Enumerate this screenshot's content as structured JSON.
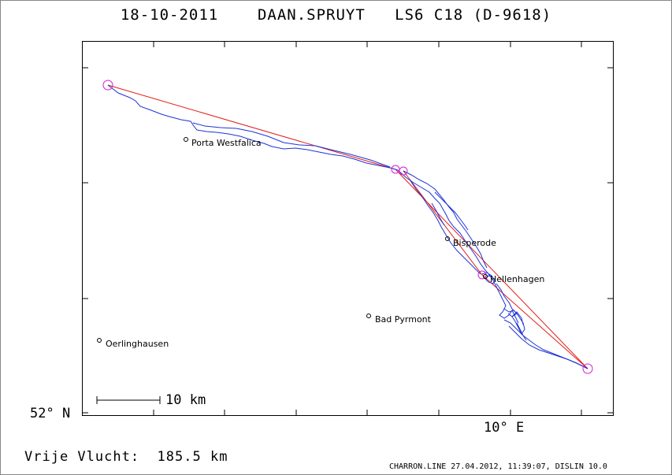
{
  "header": {
    "date": "18-10-2011",
    "pilot": "DAAN.SPRUYT",
    "glider": "LS6 C18 (D-9618)"
  },
  "axes": {
    "lat_label": "52° N",
    "lon_label": "10° E"
  },
  "scale_bar": {
    "label": "10 km"
  },
  "towns": [
    {
      "name": "Porta Westfalica"
    },
    {
      "name": "Bisperode"
    },
    {
      "name": "Hellenhagen"
    },
    {
      "name": "Bad Pyrmont"
    },
    {
      "name": "Oerlinghausen"
    }
  ],
  "footer": {
    "distance_label": "Vrije Vlucht:",
    "distance_value": "185.5 km",
    "software": "CHARRON.LINE 27.04.2012, 11:39:07, DISLIN 10.0"
  },
  "colors": {
    "track": "#1f33d6",
    "task": "#e0201a",
    "turnpoint": "#d020d0",
    "frame": "#000000"
  }
}
